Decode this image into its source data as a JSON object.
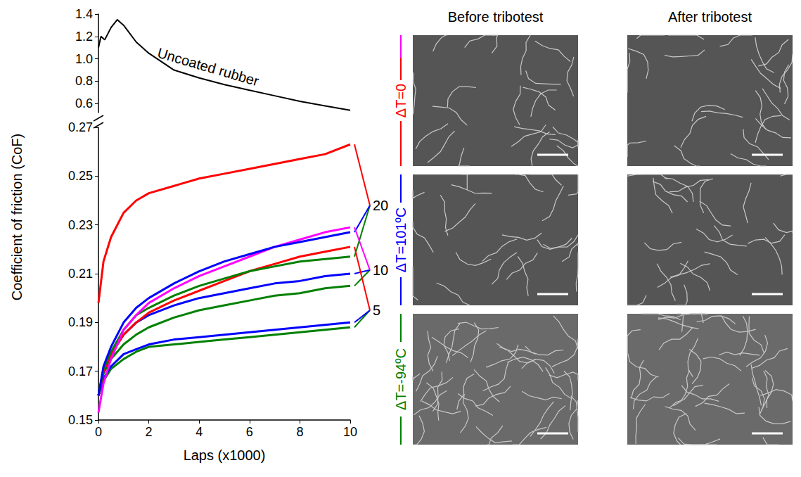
{
  "chart_data": {
    "type": "line",
    "x_label": "Laps (x1000)",
    "y_label": "Coefficient of friction (CoF)",
    "grid": false,
    "xlim": [
      0,
      10
    ],
    "xticks": [
      0,
      2,
      4,
      6,
      8,
      10
    ],
    "ylim": [
      0.15,
      0.27
    ],
    "yticks": [
      0.15,
      0.17,
      0.19,
      0.21,
      0.23,
      0.25,
      0.27
    ],
    "x": [
      0,
      0.2,
      0.5,
      1,
      1.5,
      2,
      3,
      4,
      5,
      6,
      7,
      8,
      9,
      10
    ],
    "series": [
      {
        "label": "5",
        "color": "#008000",
        "values": [
          0.16,
          0.166,
          0.171,
          0.175,
          0.178,
          0.18,
          0.181,
          0.182,
          0.183,
          0.184,
          0.185,
          0.186,
          0.187,
          0.188
        ]
      },
      {
        "label": "5",
        "color": "#0000ff",
        "values": [
          0.16,
          0.167,
          0.172,
          0.177,
          0.179,
          0.181,
          0.183,
          0.184,
          0.185,
          0.186,
          0.187,
          0.188,
          0.189,
          0.19
        ]
      },
      {
        "label": "10",
        "color": "#008000",
        "values": [
          0.16,
          0.169,
          0.175,
          0.181,
          0.185,
          0.188,
          0.192,
          0.195,
          0.197,
          0.199,
          0.201,
          0.202,
          0.204,
          0.205
        ]
      },
      {
        "label": "10",
        "color": "#0000ff",
        "values": [
          0.16,
          0.17,
          0.177,
          0.185,
          0.19,
          0.193,
          0.197,
          0.2,
          0.202,
          0.204,
          0.206,
          0.207,
          0.209,
          0.21
        ]
      },
      {
        "label": "5",
        "color": "#ff0000",
        "values": [
          0.16,
          0.17,
          0.177,
          0.185,
          0.19,
          0.194,
          0.199,
          0.203,
          0.207,
          0.211,
          0.214,
          0.217,
          0.219,
          0.221
        ]
      },
      {
        "label": "20",
        "color": "#008000",
        "values": [
          0.16,
          0.171,
          0.178,
          0.187,
          0.193,
          0.196,
          0.201,
          0.205,
          0.208,
          0.211,
          0.213,
          0.215,
          0.216,
          0.217
        ]
      },
      {
        "label": "10",
        "color": "#ff00ff",
        "values": [
          0.153,
          0.165,
          0.175,
          0.187,
          0.193,
          0.198,
          0.204,
          0.209,
          0.213,
          0.217,
          0.221,
          0.224,
          0.227,
          0.229
        ]
      },
      {
        "label": "20",
        "color": "#0000ff",
        "values": [
          0.16,
          0.172,
          0.18,
          0.19,
          0.196,
          0.2,
          0.206,
          0.211,
          0.215,
          0.218,
          0.221,
          0.223,
          0.225,
          0.227
        ]
      },
      {
        "label": "20",
        "color": "#ff0000",
        "values": [
          0.198,
          0.215,
          0.225,
          0.235,
          0.24,
          0.243,
          0.246,
          0.249,
          0.251,
          0.253,
          0.255,
          0.257,
          0.259,
          0.263
        ]
      }
    ],
    "end_labels": [
      {
        "label": "20",
        "y": 0.238
      },
      {
        "label": "10",
        "y": 0.2115
      },
      {
        "label": "5",
        "y": 0.195
      }
    ],
    "upper_panel": {
      "ylim": [
        0.52,
        1.4
      ],
      "yticks": [
        0.6,
        0.8,
        {
          "value": 1,
          "label": "1.0"
        },
        1.2,
        1.4
      ],
      "series": [
        {
          "name": "Uncoated rubber",
          "color": "#000000",
          "x": [
            0,
            0.1,
            0.25,
            0.5,
            0.75,
            1,
            1.5,
            2,
            3,
            4,
            5,
            6,
            7,
            8,
            9,
            10
          ],
          "values": [
            1.1,
            1.2,
            1.17,
            1.28,
            1.35,
            1.3,
            1.15,
            1.05,
            0.9,
            0.83,
            0.77,
            0.72,
            0.67,
            0.62,
            0.58,
            0.54
          ]
        }
      ]
    }
  },
  "images": {
    "headers": [
      "Before tribotest",
      "After tribotest"
    ],
    "rows": [
      {
        "label": "ΔT=0",
        "color": "#ff0000",
        "line_colors": [
          "#ff0000",
          "#ff00ff"
        ]
      },
      {
        "label": "ΔT=101ºC",
        "color": "#0000ff",
        "line_colors": [
          "#0000ff"
        ]
      },
      {
        "label": "ΔT=-94ºC",
        "color": "#008000",
        "line_colors": [
          "#008000"
        ]
      }
    ]
  }
}
